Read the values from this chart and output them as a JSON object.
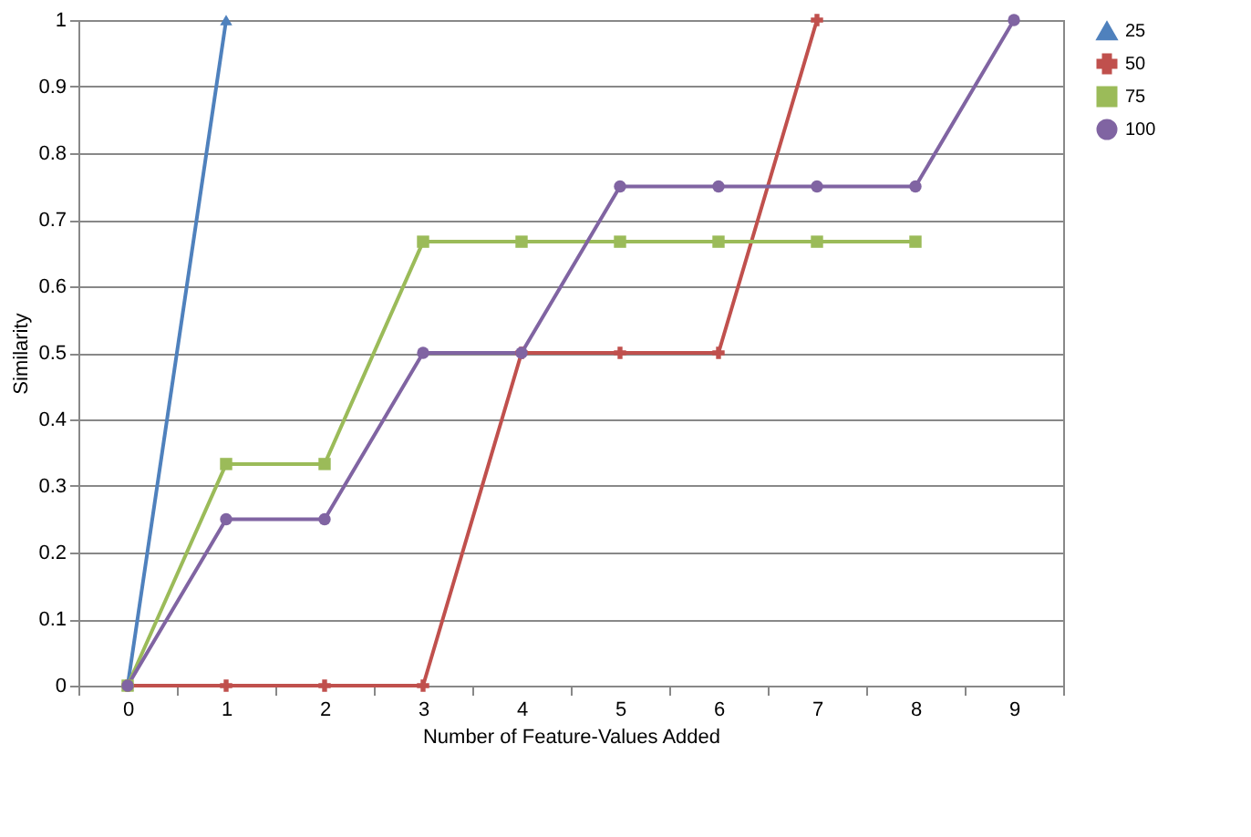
{
  "chart_data": {
    "type": "line",
    "xlabel": "Number of Feature-Values Added",
    "ylabel": "Similarity",
    "categories": [
      "0",
      "1",
      "2",
      "3",
      "4",
      "5",
      "6",
      "7",
      "8",
      "9"
    ],
    "series": [
      {
        "name": "25",
        "color": "#4f81bd",
        "marker": "triangle",
        "values": [
          0,
          1,
          null,
          null,
          null,
          null,
          null,
          null,
          null,
          null
        ]
      },
      {
        "name": "50",
        "color": "#c0504d",
        "marker": "cross",
        "values": [
          0,
          0,
          0,
          0,
          0.5,
          0.5,
          0.5,
          1,
          null,
          null
        ]
      },
      {
        "name": "75",
        "color": "#9bbb59",
        "marker": "square",
        "values": [
          0,
          0.333,
          0.333,
          0.667,
          0.667,
          0.667,
          0.667,
          0.667,
          0.667,
          null
        ]
      },
      {
        "name": "100",
        "color": "#8064a2",
        "marker": "circle",
        "values": [
          0,
          0.25,
          0.25,
          0.5,
          0.5,
          0.75,
          0.75,
          0.75,
          0.75,
          1
        ]
      }
    ],
    "ylim": [
      0,
      1
    ],
    "yticks": [
      0,
      0.1,
      0.2,
      0.3,
      0.4,
      0.5,
      0.6,
      0.7,
      0.8,
      0.9,
      1
    ],
    "grid": "y",
    "legend": "right",
    "line_style": "solid"
  }
}
